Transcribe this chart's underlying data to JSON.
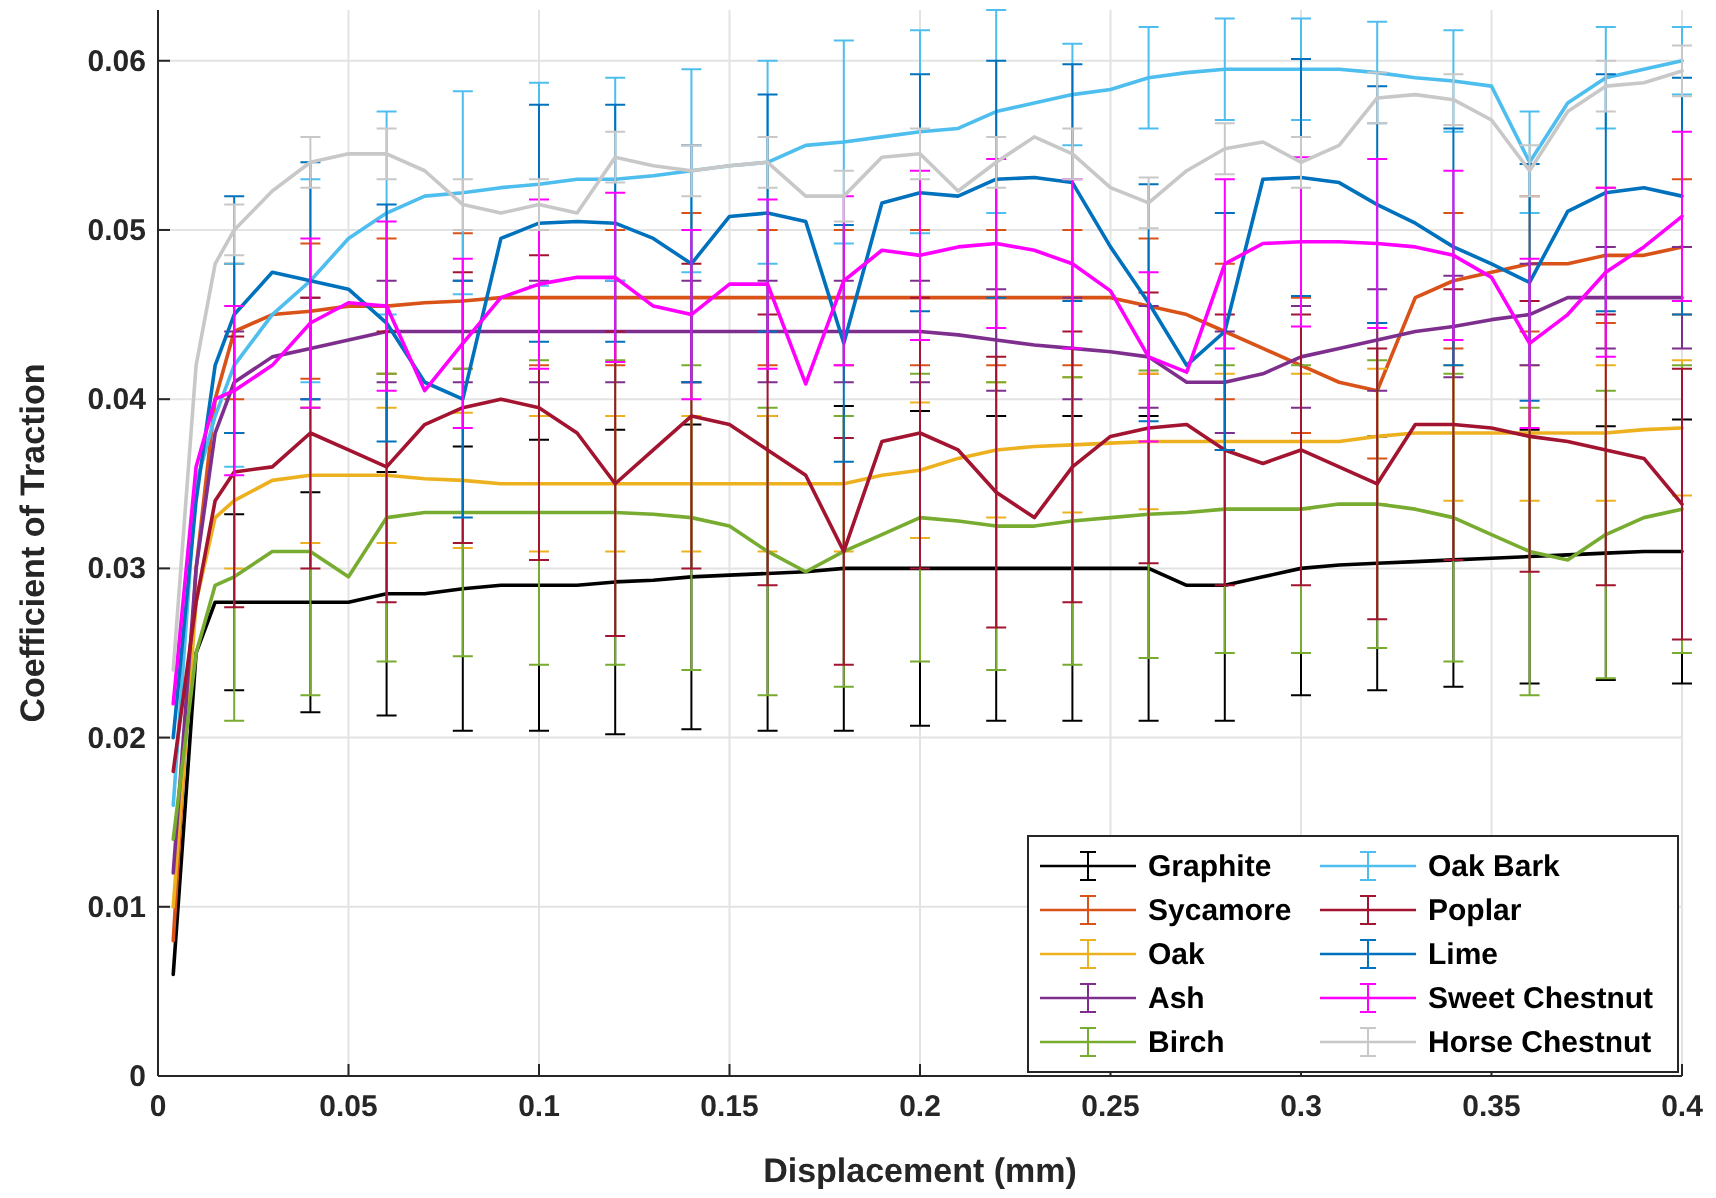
{
  "chart_data": {
    "type": "line",
    "xlabel": "Displacement (mm)",
    "ylabel": "Coefficient of Traction",
    "x": [
      0.004,
      0.01,
      0.015,
      0.02,
      0.03,
      0.04,
      0.05,
      0.06,
      0.07,
      0.08,
      0.09,
      0.1,
      0.11,
      0.12,
      0.13,
      0.14,
      0.15,
      0.16,
      0.17,
      0.18,
      0.19,
      0.2,
      0.21,
      0.22,
      0.23,
      0.24,
      0.25,
      0.26,
      0.27,
      0.28,
      0.29,
      0.3,
      0.31,
      0.32,
      0.33,
      0.34,
      0.35,
      0.36,
      0.37,
      0.38,
      0.39,
      0.4
    ],
    "xlim": [
      0,
      0.4
    ],
    "xticks": [
      0,
      0.05,
      0.1,
      0.15,
      0.2,
      0.25,
      0.3,
      0.35,
      0.4
    ],
    "ylim": [
      0,
      0.063
    ],
    "yticks": [
      0,
      0.01,
      0.02,
      0.03,
      0.04,
      0.05,
      0.06
    ],
    "grid": true,
    "legend": "bottom right",
    "marker": "none",
    "line_style": "solid",
    "series": [
      {
        "name": "Graphite",
        "color": "#000000",
        "values": [
          0.006,
          0.025,
          0.028,
          0.028,
          0.028,
          0.028,
          0.028,
          0.0285,
          0.0285,
          0.0288,
          0.029,
          0.029,
          0.029,
          0.0292,
          0.0293,
          0.0295,
          0.0296,
          0.0297,
          0.0298,
          0.03,
          0.03,
          0.03,
          0.03,
          0.03,
          0.03,
          0.03,
          0.03,
          0.03,
          0.029,
          0.029,
          0.0295,
          0.03,
          0.0302,
          0.0303,
          0.0304,
          0.0305,
          0.0306,
          0.0307,
          0.0308,
          0.0309,
          0.031,
          0.031
        ],
        "errors": [
          null,
          null,
          null,
          0.0052,
          null,
          0.0065,
          null,
          0.0072,
          null,
          0.0084,
          null,
          0.0086,
          null,
          0.009,
          null,
          0.009,
          null,
          0.0093,
          null,
          0.0096,
          null,
          0.0093,
          null,
          0.009,
          null,
          0.009,
          null,
          0.009,
          null,
          0.008,
          null,
          0.0075,
          null,
          0.0075,
          null,
          0.0075,
          null,
          0.0075,
          null,
          0.0075,
          null,
          0.0078
        ]
      },
      {
        "name": "Sycamore",
        "color": "#d95319",
        "values": [
          0.008,
          0.03,
          0.04,
          0.044,
          0.045,
          0.0452,
          0.0455,
          0.0455,
          0.0457,
          0.0458,
          0.046,
          0.046,
          0.046,
          0.046,
          0.046,
          0.046,
          0.046,
          0.046,
          0.046,
          0.046,
          0.046,
          0.046,
          0.046,
          0.046,
          0.046,
          0.046,
          0.046,
          0.0455,
          0.045,
          0.044,
          0.043,
          0.042,
          0.041,
          0.0405,
          0.046,
          0.047,
          0.0475,
          0.048,
          0.048,
          0.0485,
          0.0485,
          0.049
        ],
        "errors": [
          null,
          null,
          null,
          0.004,
          null,
          0.004,
          null,
          0.004,
          null,
          0.004,
          null,
          0.004,
          null,
          0.004,
          null,
          0.005,
          null,
          0.004,
          null,
          0.004,
          null,
          0.004,
          null,
          0.004,
          null,
          0.004,
          null,
          0.004,
          null,
          0.004,
          null,
          0.004,
          null,
          0.004,
          null,
          0.004,
          null,
          0.004,
          null,
          0.004,
          null,
          0.004
        ]
      },
      {
        "name": "Oak",
        "color": "#edb120",
        "values": [
          0.01,
          0.028,
          0.033,
          0.034,
          0.0352,
          0.0355,
          0.0355,
          0.0355,
          0.0353,
          0.0352,
          0.035,
          0.035,
          0.035,
          0.035,
          0.035,
          0.035,
          0.035,
          0.035,
          0.035,
          0.035,
          0.0355,
          0.0358,
          0.0365,
          0.037,
          0.0372,
          0.0373,
          0.0374,
          0.0375,
          0.0375,
          0.0375,
          0.0375,
          0.0375,
          0.0375,
          0.0378,
          0.038,
          0.038,
          0.038,
          0.038,
          0.038,
          0.038,
          0.0382,
          0.0383
        ],
        "errors": [
          null,
          null,
          null,
          0.004,
          null,
          0.004,
          null,
          0.004,
          null,
          0.004,
          null,
          0.004,
          null,
          0.004,
          null,
          0.004,
          null,
          0.004,
          null,
          0.004,
          null,
          0.004,
          null,
          0.004,
          null,
          0.004,
          null,
          0.004,
          null,
          0.004,
          null,
          0.004,
          null,
          0.004,
          null,
          0.004,
          null,
          0.004,
          null,
          0.004,
          null,
          0.004
        ]
      },
      {
        "name": "Ash",
        "color": "#7e2f8e",
        "values": [
          0.012,
          0.03,
          0.038,
          0.041,
          0.0425,
          0.043,
          0.0435,
          0.044,
          0.044,
          0.044,
          0.044,
          0.044,
          0.044,
          0.044,
          0.044,
          0.044,
          0.044,
          0.044,
          0.044,
          0.044,
          0.044,
          0.044,
          0.0438,
          0.0435,
          0.0432,
          0.043,
          0.0428,
          0.0425,
          0.041,
          0.041,
          0.0415,
          0.0425,
          0.043,
          0.0435,
          0.044,
          0.0443,
          0.0447,
          0.045,
          0.046,
          0.046,
          0.046,
          0.046
        ],
        "errors": [
          null,
          null,
          null,
          0.003,
          null,
          0.003,
          null,
          0.003,
          null,
          0.003,
          null,
          0.003,
          null,
          0.003,
          null,
          0.003,
          null,
          0.003,
          null,
          0.003,
          null,
          0.003,
          null,
          0.003,
          null,
          0.003,
          null,
          0.003,
          null,
          0.003,
          null,
          0.003,
          null,
          0.003,
          null,
          0.003,
          null,
          0.003,
          null,
          0.003,
          null,
          0.003
        ]
      },
      {
        "name": "Birch",
        "color": "#77ac30",
        "values": [
          0.014,
          0.025,
          0.029,
          0.0295,
          0.031,
          0.031,
          0.0295,
          0.033,
          0.0333,
          0.0333,
          0.0333,
          0.0333,
          0.0333,
          0.0333,
          0.0332,
          0.033,
          0.0325,
          0.031,
          0.0298,
          0.031,
          0.032,
          0.033,
          0.0328,
          0.0325,
          0.0325,
          0.0328,
          0.033,
          0.0332,
          0.0333,
          0.0335,
          0.0335,
          0.0335,
          0.0338,
          0.0338,
          0.0335,
          0.033,
          0.032,
          0.031,
          0.0305,
          0.032,
          0.033,
          0.0335
        ],
        "errors": [
          null,
          null,
          null,
          0.0085,
          null,
          0.0085,
          null,
          0.0085,
          null,
          0.0085,
          null,
          0.009,
          null,
          0.009,
          null,
          0.009,
          null,
          0.0085,
          null,
          0.008,
          null,
          0.0085,
          null,
          0.0085,
          null,
          0.0085,
          null,
          0.0085,
          null,
          0.0085,
          null,
          0.0085,
          null,
          0.0085,
          null,
          0.0085,
          null,
          0.0085,
          null,
          0.0085,
          null,
          0.0085
        ]
      },
      {
        "name": "Oak Bark",
        "color": "#4dbeee",
        "values": [
          0.016,
          0.035,
          0.039,
          0.042,
          0.045,
          0.047,
          0.0495,
          0.051,
          0.052,
          0.0522,
          0.0525,
          0.0527,
          0.053,
          0.053,
          0.0532,
          0.0535,
          0.0538,
          0.054,
          0.055,
          0.0552,
          0.0555,
          0.0558,
          0.056,
          0.057,
          0.0575,
          0.058,
          0.0583,
          0.059,
          0.0593,
          0.0595,
          0.0595,
          0.0595,
          0.0595,
          0.0593,
          0.059,
          0.0588,
          0.0585,
          0.054,
          0.0575,
          0.059,
          0.0595,
          0.06
        ],
        "errors": [
          null,
          null,
          null,
          0.006,
          null,
          0.006,
          null,
          0.006,
          null,
          0.006,
          null,
          0.006,
          null,
          0.006,
          null,
          0.006,
          null,
          0.006,
          null,
          0.006,
          null,
          0.006,
          null,
          0.006,
          null,
          0.003,
          null,
          0.003,
          null,
          0.003,
          null,
          0.003,
          null,
          0.003,
          null,
          0.003,
          null,
          0.003,
          null,
          0.003,
          null,
          0.002
        ]
      },
      {
        "name": "Poplar",
        "color": "#a2142f",
        "values": [
          0.018,
          0.028,
          0.034,
          0.0357,
          0.036,
          0.038,
          0.037,
          0.036,
          0.0385,
          0.0395,
          0.04,
          0.0395,
          0.038,
          0.035,
          0.037,
          0.039,
          0.0385,
          0.037,
          0.0355,
          0.031,
          0.0375,
          0.038,
          0.037,
          0.0345,
          0.033,
          0.036,
          0.0378,
          0.0383,
          0.0385,
          0.037,
          0.0362,
          0.037,
          0.036,
          0.035,
          0.0385,
          0.0385,
          0.0383,
          0.0378,
          0.0375,
          0.037,
          0.0365,
          0.0338
        ],
        "errors": [
          null,
          null,
          null,
          0.008,
          null,
          0.008,
          null,
          0.008,
          null,
          0.008,
          null,
          0.009,
          null,
          0.009,
          null,
          0.009,
          null,
          0.008,
          null,
          0.0067,
          null,
          0.008,
          null,
          0.008,
          null,
          0.008,
          null,
          0.008,
          null,
          0.008,
          null,
          0.008,
          null,
          0.008,
          null,
          0.008,
          null,
          0.008,
          null,
          0.008,
          null,
          0.008
        ]
      },
      {
        "name": "Lime",
        "color": "#0072bd",
        "values": [
          0.02,
          0.034,
          0.042,
          0.045,
          0.0475,
          0.047,
          0.0465,
          0.0445,
          0.041,
          0.04,
          0.0495,
          0.0504,
          0.0505,
          0.0504,
          0.0495,
          0.048,
          0.0508,
          0.051,
          0.0505,
          0.0433,
          0.0516,
          0.0522,
          0.052,
          0.053,
          0.0531,
          0.0528,
          0.049,
          0.0457,
          0.042,
          0.044,
          0.053,
          0.0531,
          0.0528,
          0.0515,
          0.0504,
          0.049,
          0.048,
          0.0469,
          0.0511,
          0.0522,
          0.0525,
          0.052
        ],
        "errors": [
          null,
          null,
          null,
          0.007,
          null,
          0.007,
          null,
          0.007,
          null,
          0.007,
          null,
          0.007,
          null,
          0.007,
          null,
          0.007,
          null,
          0.007,
          null,
          0.007,
          null,
          0.007,
          null,
          0.007,
          null,
          0.007,
          null,
          0.007,
          null,
          0.007,
          null,
          0.007,
          null,
          0.007,
          null,
          0.007,
          null,
          0.007,
          null,
          0.007,
          null,
          0.007
        ]
      },
      {
        "name": "Sweet Chestnut",
        "color": "#ff00ff",
        "values": [
          0.022,
          0.036,
          0.04,
          0.0405,
          0.042,
          0.0445,
          0.0457,
          0.0455,
          0.0405,
          0.0433,
          0.046,
          0.0468,
          0.0472,
          0.0472,
          0.0455,
          0.045,
          0.0468,
          0.0468,
          0.0409,
          0.047,
          0.0488,
          0.0485,
          0.049,
          0.0492,
          0.0488,
          0.048,
          0.0464,
          0.0425,
          0.0416,
          0.048,
          0.0492,
          0.0493,
          0.0493,
          0.0492,
          0.049,
          0.0485,
          0.0472,
          0.0433,
          0.045,
          0.0475,
          0.049,
          0.0508
        ],
        "errors": [
          null,
          null,
          null,
          0.005,
          null,
          0.005,
          null,
          0.005,
          null,
          0.005,
          null,
          0.005,
          null,
          0.005,
          null,
          0.005,
          null,
          0.005,
          null,
          0.005,
          null,
          0.005,
          null,
          0.005,
          null,
          0.005,
          null,
          0.005,
          null,
          0.005,
          null,
          0.005,
          null,
          0.005,
          null,
          0.005,
          null,
          0.005,
          null,
          0.005,
          null,
          0.005
        ]
      },
      {
        "name": "Horse Chestnut",
        "color": "#c8c8c8",
        "values": [
          0.024,
          0.042,
          0.048,
          0.05,
          0.0523,
          0.054,
          0.0545,
          0.0545,
          0.0535,
          0.0515,
          0.051,
          0.0515,
          0.051,
          0.0543,
          0.0538,
          0.0535,
          0.0538,
          0.054,
          0.052,
          0.052,
          0.0543,
          0.0545,
          0.0523,
          0.054,
          0.0555,
          0.0545,
          0.0525,
          0.0516,
          0.0535,
          0.0548,
          0.0552,
          0.054,
          0.055,
          0.0578,
          0.058,
          0.0577,
          0.0565,
          0.0535,
          0.057,
          0.0585,
          0.0587,
          0.0594
        ],
        "errors": [
          null,
          null,
          null,
          0.0015,
          null,
          0.0015,
          null,
          0.0015,
          null,
          0.0015,
          null,
          0.0015,
          null,
          0.0015,
          null,
          0.0015,
          null,
          0.0015,
          null,
          0.0015,
          null,
          0.0015,
          null,
          0.0015,
          null,
          0.0015,
          null,
          0.0015,
          null,
          0.0015,
          null,
          0.0015,
          null,
          0.0015,
          null,
          0.0015,
          null,
          0.0015,
          null,
          0.0015,
          null,
          0.0015
        ]
      }
    ]
  }
}
